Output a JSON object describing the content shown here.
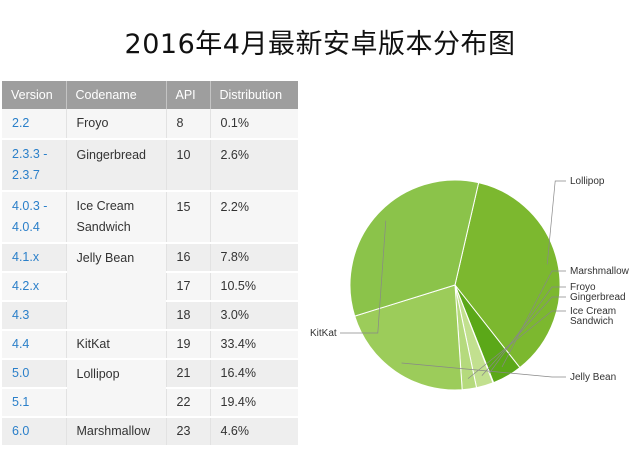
{
  "title": "2016年4月最新安卓版本分布图",
  "table": {
    "headers": [
      "Version",
      "Codename",
      "API",
      "Distribution"
    ],
    "rows": [
      {
        "version": "2.2",
        "codename": "Froyo",
        "api": "8",
        "dist": "0.1%"
      },
      {
        "version": "2.3.3 -\n2.3.7",
        "codename": "Gingerbread",
        "api": "10",
        "dist": "2.6%"
      },
      {
        "version": "4.0.3 -\n4.0.4",
        "codename": "Ice Cream\nSandwich",
        "api": "15",
        "dist": "2.2%"
      },
      {
        "version": "4.1.x",
        "codename": "Jelly Bean",
        "api": "16",
        "dist": "7.8%"
      },
      {
        "version": "4.2.x",
        "codename": "",
        "api": "17",
        "dist": "10.5%"
      },
      {
        "version": "4.3",
        "codename": "",
        "api": "18",
        "dist": "3.0%"
      },
      {
        "version": "4.4",
        "codename": "KitKat",
        "api": "19",
        "dist": "33.4%"
      },
      {
        "version": "5.0",
        "codename": "Lollipop",
        "api": "21",
        "dist": "16.4%"
      },
      {
        "version": "5.1",
        "codename": "",
        "api": "22",
        "dist": "19.4%"
      },
      {
        "version": "6.0",
        "codename": "Marshmallow",
        "api": "23",
        "dist": "4.6%"
      }
    ]
  },
  "chart_data": {
    "type": "pie",
    "slices": [
      {
        "label": "Lollipop",
        "value": 35.8,
        "color": "#7cb82f"
      },
      {
        "label": "Marshmallow",
        "value": 4.6,
        "color": "#5ba818"
      },
      {
        "label": "Froyo",
        "value": 0.1,
        "color": "#cfe6a8"
      },
      {
        "label": "Gingerbread",
        "value": 2.6,
        "color": "#c2e08f"
      },
      {
        "label": "Ice Cream\nSandwich",
        "value": 2.2,
        "color": "#b5da7d"
      },
      {
        "label": "Jelly Bean",
        "value": 21.3,
        "color": "#9ccc5a"
      },
      {
        "label": "KitKat",
        "value": 33.4,
        "color": "#8bc34a"
      }
    ]
  }
}
